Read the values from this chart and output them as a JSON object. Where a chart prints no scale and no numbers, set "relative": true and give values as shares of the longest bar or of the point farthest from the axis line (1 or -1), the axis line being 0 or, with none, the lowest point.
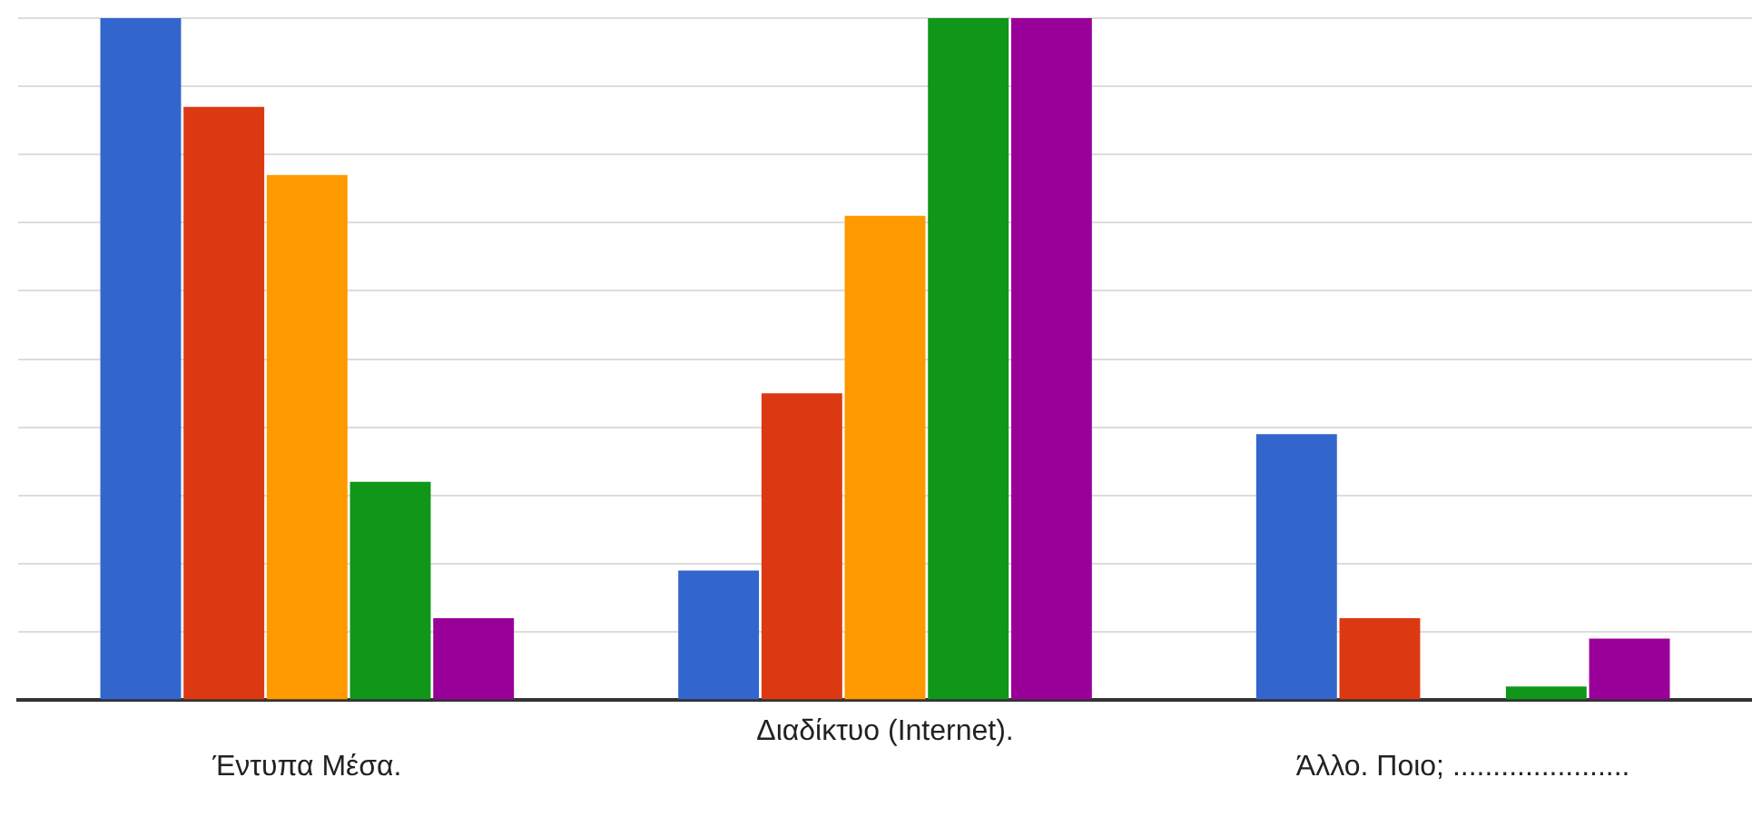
{
  "chart_data": {
    "type": "bar",
    "relative": true,
    "grid": "y",
    "categories": [
      "Έντυπα Μέσα.",
      "Διαδίκτυο (Internet).",
      "Άλλο. Ποιο; ......................"
    ],
    "series": [
      {
        "color": "#3366cc",
        "values": [
          1,
          0.19,
          0.39
        ]
      },
      {
        "color": "#dc3912",
        "values": [
          0.87,
          0.45,
          0.12
        ]
      },
      {
        "color": "#ff9900",
        "values": [
          0.77,
          0.71,
          0
        ]
      },
      {
        "color": "#109618",
        "values": [
          0.32,
          1,
          0.02
        ]
      },
      {
        "color": "#990099",
        "values": [
          0.12,
          1,
          0.09
        ]
      }
    ]
  }
}
